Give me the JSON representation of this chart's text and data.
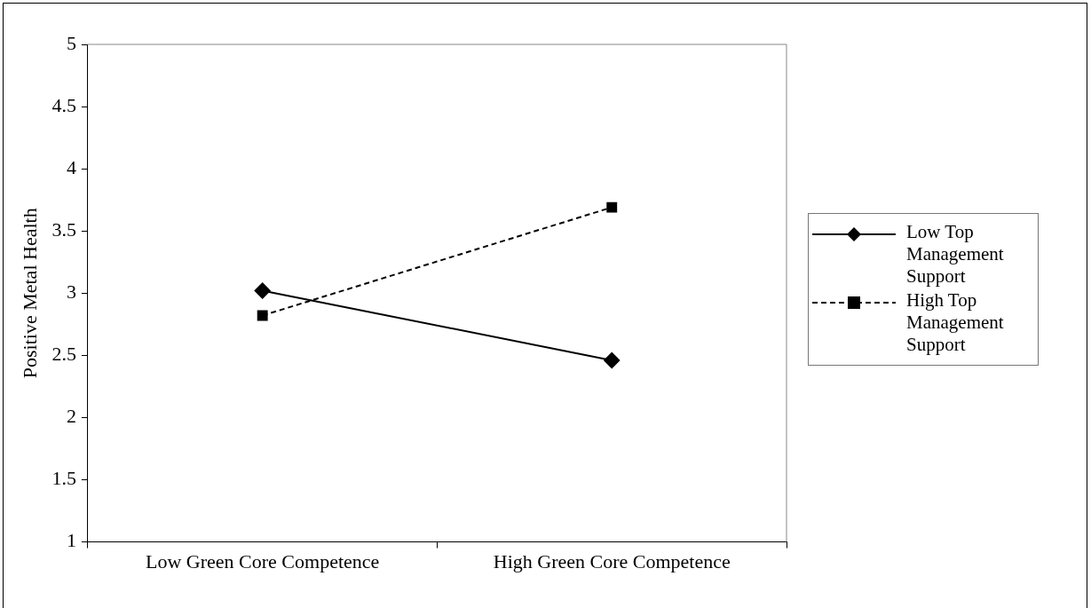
{
  "chart_data": {
    "type": "line",
    "ylabel": "Positive Metal Health",
    "categories": [
      "Low Green Core Competence",
      "High Green Core Competence"
    ],
    "series": [
      {
        "name": "Low Top Management Support",
        "color": "#000000",
        "values": [
          3.02,
          2.46
        ],
        "marker": "diamond",
        "line_style": "solid"
      },
      {
        "name": "High Top Management Support",
        "color": "#000000",
        "values": [
          2.82,
          3.69
        ],
        "marker": "square",
        "line_style": "dashed"
      }
    ],
    "ylim": [
      1,
      5
    ],
    "yticks": [
      1,
      1.5,
      2,
      2.5,
      3,
      3.5,
      4,
      4.5,
      5
    ],
    "grid": false,
    "legend": "right"
  }
}
